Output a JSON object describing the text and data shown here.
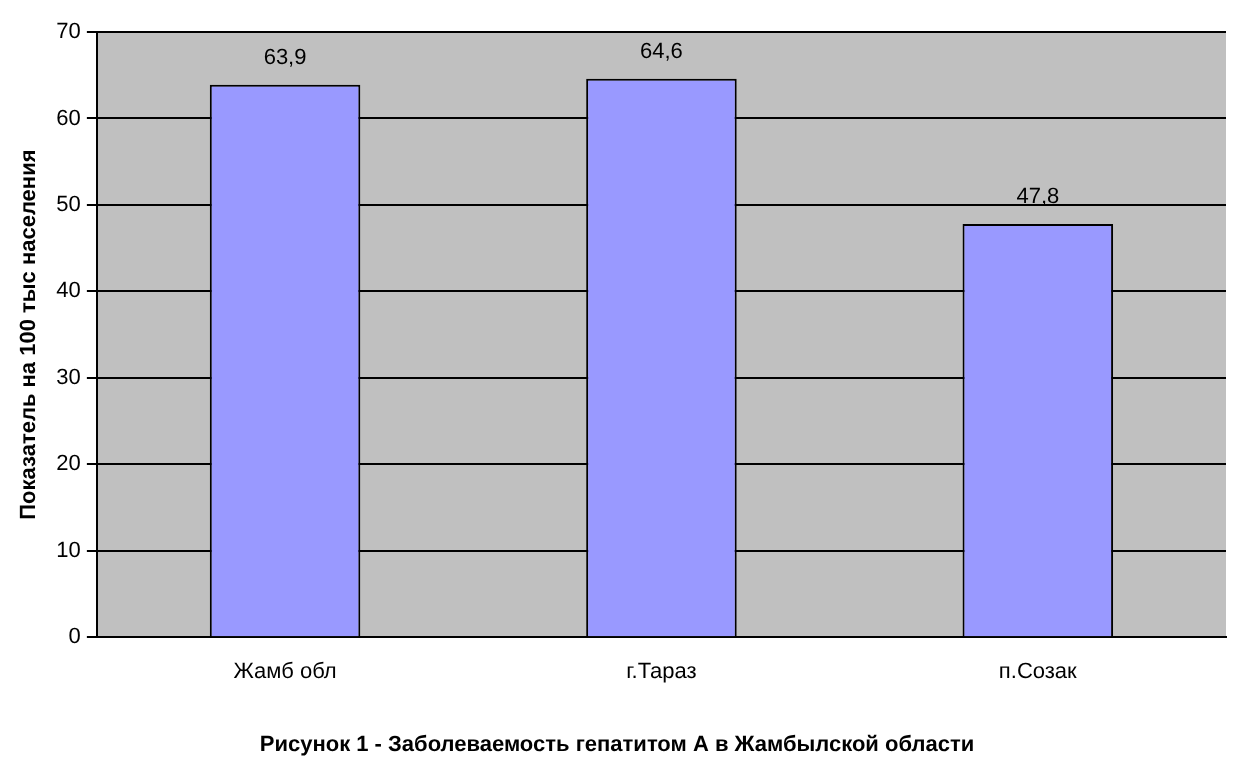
{
  "chart_data": {
    "type": "bar",
    "title": "Рисунок 1 - Заболеваемость гепатитом А в Жамбылской области",
    "ylabel": "Показатель на 100 тыс населения",
    "categories": [
      "Жамб обл",
      "г.Тараз",
      "п.Созак"
    ],
    "values": [
      63.9,
      64.6,
      47.8
    ],
    "color": "#9999ff",
    "value_labels": [
      "63,9",
      "64,6",
      "47,8"
    ],
    "ylim": [
      0,
      70
    ],
    "yticks": [
      0,
      10,
      20,
      30,
      40,
      50,
      60,
      70
    ],
    "grid": "y",
    "legend": false
  }
}
